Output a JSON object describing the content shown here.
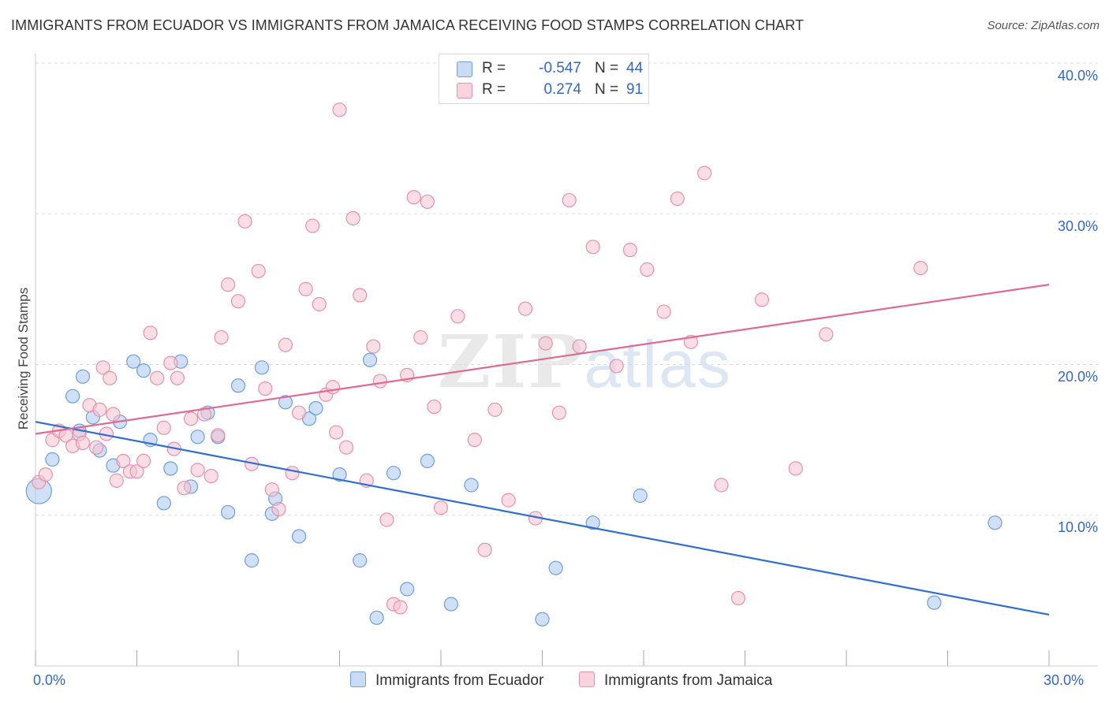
{
  "header": {
    "title": "IMMIGRANTS FROM ECUADOR VS IMMIGRANTS FROM JAMAICA RECEIVING FOOD STAMPS CORRELATION CHART",
    "source": "Source: ZipAtlas.com"
  },
  "watermark": {
    "zip": "ZIP",
    "atlas": "atlas"
  },
  "legend": {
    "rows": [
      {
        "r_label": "R =",
        "r_value": "-0.547",
        "n_label": "N =",
        "n_value": "44",
        "color": "#a9c6ef"
      },
      {
        "r_label": "R =",
        "r_value": "0.274",
        "n_label": "N =",
        "n_value": "91",
        "color": "#f6b8cb"
      }
    ]
  },
  "colors": {
    "ecuador_fill": "#a9c6ef",
    "ecuador_stroke": "#6f9fdc",
    "ecuador_line": "#2f6fcf",
    "jamaica_fill": "#f6c2d2",
    "jamaica_stroke": "#e890ad",
    "jamaica_line": "#e06a93",
    "tick_text": "#3366cc",
    "grid": "#dddddd"
  },
  "chart_data": {
    "type": "scatter",
    "title": "IMMIGRANTS FROM ECUADOR VS IMMIGRANTS FROM JAMAICA RECEIVING FOOD STAMPS CORRELATION CHART",
    "xlabel": "",
    "ylabel": "Receiving Food Stamps",
    "xlim": [
      0,
      30
    ],
    "ylim": [
      0,
      40
    ],
    "x_tick_labels": [
      "0.0%",
      "30.0%"
    ],
    "y_ticks": [
      10,
      20,
      30,
      40
    ],
    "y_tick_labels": [
      "10.0%",
      "20.0%",
      "30.0%",
      "40.0%"
    ],
    "grid": true,
    "legend_position": "bottom",
    "series": [
      {
        "name": "Immigrants from Ecuador",
        "trend": [
          [
            0,
            16.2
          ],
          [
            30,
            3.4
          ]
        ],
        "points": [
          [
            0.1,
            11.6
          ],
          [
            0.5,
            13.7
          ],
          [
            1.1,
            17.9
          ],
          [
            1.3,
            15.6
          ],
          [
            1.4,
            19.2
          ],
          [
            1.7,
            16.5
          ],
          [
            1.9,
            14.3
          ],
          [
            2.3,
            13.3
          ],
          [
            2.5,
            16.2
          ],
          [
            2.9,
            20.2
          ],
          [
            3.2,
            19.6
          ],
          [
            3.4,
            15.0
          ],
          [
            3.8,
            10.8
          ],
          [
            4.0,
            13.1
          ],
          [
            4.3,
            20.2
          ],
          [
            4.6,
            11.9
          ],
          [
            4.8,
            15.2
          ],
          [
            5.1,
            16.8
          ],
          [
            5.4,
            15.2
          ],
          [
            5.7,
            10.2
          ],
          [
            6.0,
            18.6
          ],
          [
            6.4,
            7.0
          ],
          [
            6.7,
            19.8
          ],
          [
            7.0,
            10.1
          ],
          [
            7.1,
            11.1
          ],
          [
            7.4,
            17.5
          ],
          [
            7.8,
            8.6
          ],
          [
            8.1,
            16.4
          ],
          [
            8.3,
            17.1
          ],
          [
            9.0,
            12.7
          ],
          [
            9.6,
            7.0
          ],
          [
            9.9,
            20.3
          ],
          [
            10.1,
            3.2
          ],
          [
            10.6,
            12.8
          ],
          [
            11.0,
            5.1
          ],
          [
            11.6,
            13.6
          ],
          [
            12.3,
            4.1
          ],
          [
            12.9,
            12.0
          ],
          [
            15.0,
            3.1
          ],
          [
            15.4,
            6.5
          ],
          [
            16.5,
            9.5
          ],
          [
            17.9,
            11.3
          ],
          [
            26.6,
            4.2
          ],
          [
            28.4,
            9.5
          ]
        ]
      },
      {
        "name": "Immigrants from Jamaica",
        "trend": [
          [
            0,
            15.4
          ],
          [
            30,
            25.3
          ]
        ],
        "points": [
          [
            0.1,
            12.2
          ],
          [
            0.3,
            12.7
          ],
          [
            0.5,
            15.0
          ],
          [
            0.7,
            15.6
          ],
          [
            0.9,
            15.3
          ],
          [
            1.1,
            14.6
          ],
          [
            1.3,
            15.4
          ],
          [
            1.4,
            14.8
          ],
          [
            1.6,
            17.3
          ],
          [
            1.8,
            14.5
          ],
          [
            1.9,
            17.0
          ],
          [
            2.0,
            19.8
          ],
          [
            2.1,
            15.4
          ],
          [
            2.2,
            19.1
          ],
          [
            2.3,
            16.7
          ],
          [
            2.4,
            12.3
          ],
          [
            2.6,
            13.6
          ],
          [
            2.8,
            12.9
          ],
          [
            3.0,
            12.9
          ],
          [
            3.2,
            13.6
          ],
          [
            3.4,
            22.1
          ],
          [
            3.6,
            19.1
          ],
          [
            3.8,
            15.8
          ],
          [
            4.0,
            20.1
          ],
          [
            4.1,
            14.4
          ],
          [
            4.2,
            19.1
          ],
          [
            4.4,
            11.8
          ],
          [
            4.6,
            16.4
          ],
          [
            4.8,
            13.0
          ],
          [
            5.0,
            16.7
          ],
          [
            5.2,
            12.6
          ],
          [
            5.4,
            15.3
          ],
          [
            5.5,
            21.8
          ],
          [
            5.7,
            25.3
          ],
          [
            6.0,
            24.2
          ],
          [
            6.2,
            29.5
          ],
          [
            6.4,
            13.4
          ],
          [
            6.6,
            26.2
          ],
          [
            6.8,
            18.4
          ],
          [
            7.0,
            11.7
          ],
          [
            7.2,
            10.4
          ],
          [
            7.4,
            21.3
          ],
          [
            7.6,
            12.8
          ],
          [
            7.8,
            16.8
          ],
          [
            8.0,
            25.0
          ],
          [
            8.2,
            29.2
          ],
          [
            8.4,
            24.0
          ],
          [
            8.6,
            18.0
          ],
          [
            8.8,
            18.5
          ],
          [
            8.9,
            15.5
          ],
          [
            9.0,
            36.9
          ],
          [
            9.2,
            14.5
          ],
          [
            9.4,
            29.7
          ],
          [
            9.6,
            24.6
          ],
          [
            9.8,
            12.3
          ],
          [
            10.0,
            21.2
          ],
          [
            10.2,
            18.9
          ],
          [
            10.4,
            9.7
          ],
          [
            10.6,
            4.1
          ],
          [
            10.8,
            3.9
          ],
          [
            11.0,
            19.3
          ],
          [
            11.2,
            31.1
          ],
          [
            11.4,
            21.8
          ],
          [
            11.6,
            30.8
          ],
          [
            11.8,
            17.2
          ],
          [
            12.0,
            10.5
          ],
          [
            12.5,
            23.2
          ],
          [
            13.0,
            15.0
          ],
          [
            13.3,
            7.7
          ],
          [
            13.6,
            17.0
          ],
          [
            14.0,
            11.0
          ],
          [
            14.5,
            23.7
          ],
          [
            14.8,
            9.8
          ],
          [
            15.1,
            21.4
          ],
          [
            15.5,
            16.8
          ],
          [
            15.8,
            30.9
          ],
          [
            16.1,
            21.2
          ],
          [
            16.5,
            27.8
          ],
          [
            17.2,
            19.9
          ],
          [
            17.6,
            27.6
          ],
          [
            18.1,
            26.3
          ],
          [
            18.6,
            23.5
          ],
          [
            19.0,
            31.0
          ],
          [
            19.4,
            21.5
          ],
          [
            19.8,
            32.7
          ],
          [
            20.3,
            12.0
          ],
          [
            20.8,
            4.5
          ],
          [
            21.5,
            24.3
          ],
          [
            22.5,
            13.1
          ],
          [
            23.4,
            22.0
          ],
          [
            26.2,
            26.4
          ]
        ]
      }
    ]
  },
  "bottom_legend": [
    {
      "label": "Immigrants from Ecuador"
    },
    {
      "label": "Immigrants from Jamaica"
    }
  ]
}
